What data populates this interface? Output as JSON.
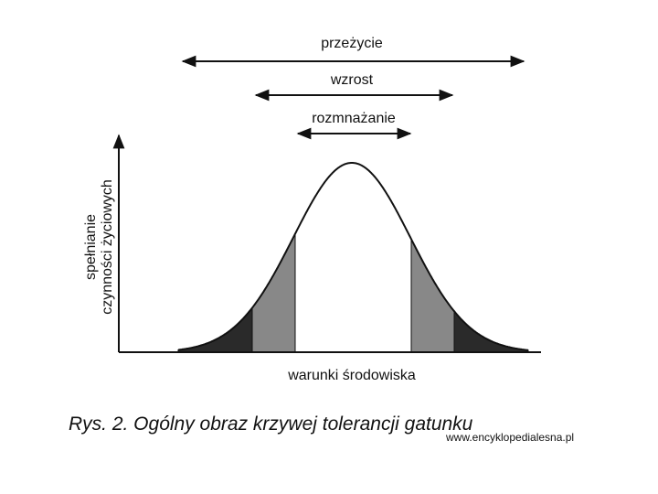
{
  "arrows": [
    {
      "label": "przeżycie"
    },
    {
      "label": "wzrost"
    },
    {
      "label": "rozmnażanie"
    }
  ],
  "y_axis_label": [
    "spełnianie",
    "czynności życiowych"
  ],
  "x_axis_label": "warunki środowiska",
  "caption": "Rys. 2. Ogólny obraz krzywej tolerancji gatunku",
  "source": "www.encyklopedialesna.pl"
}
